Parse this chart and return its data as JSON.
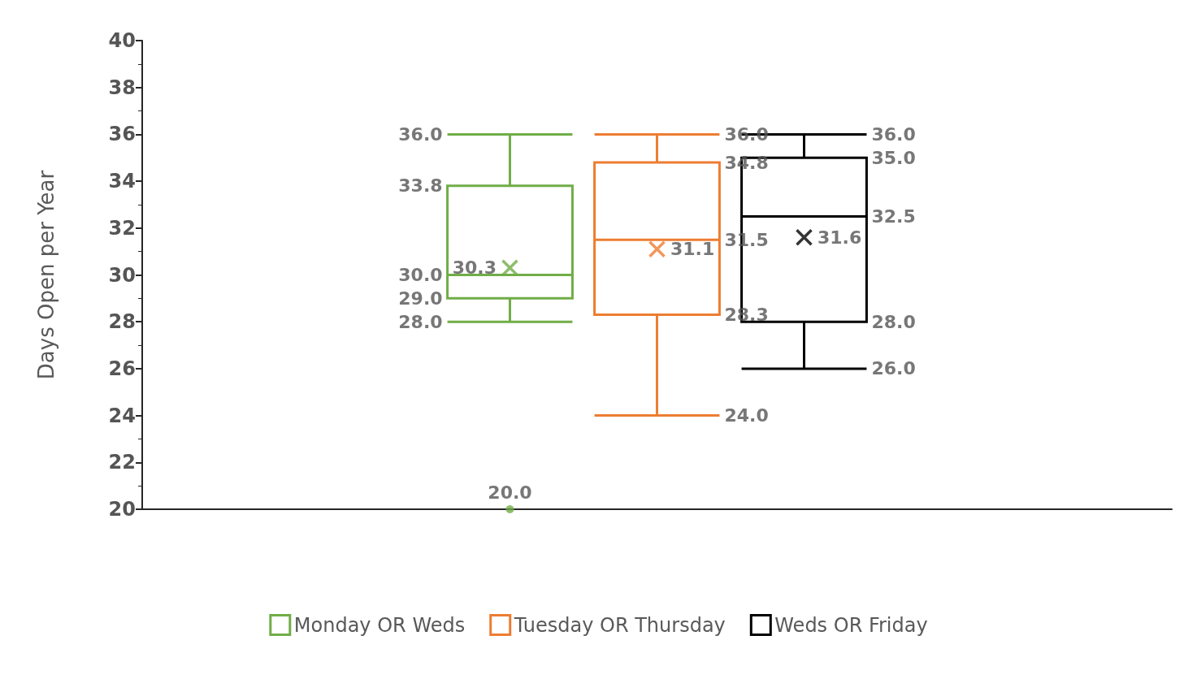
{
  "chart_data": {
    "type": "box",
    "ylabel": "Days Open per Year",
    "categories": [
      null
    ],
    "ylim": [
      20,
      40
    ],
    "yticks": [
      20,
      22,
      24,
      26,
      28,
      30,
      32,
      34,
      36,
      38,
      40
    ],
    "grid": false,
    "legend": "bottom",
    "series": [
      {
        "name": "Monday OR Weds",
        "color": "#70ad47",
        "boxes": [
          {
            "low": 28.0,
            "q1": 29.0,
            "median": 30.0,
            "q3": 33.8,
            "high": 36.0,
            "mean": 30.3,
            "outliers": [
              20.0
            ]
          }
        ]
      },
      {
        "name": "Tuesday OR Thursday",
        "color": "#ed7d31",
        "boxes": [
          {
            "low": 24.0,
            "q1": 28.3,
            "median": 31.5,
            "q3": 34.8,
            "high": 36.0,
            "mean": 31.1
          }
        ]
      },
      {
        "name": "Weds OR Friday",
        "color": "#000000",
        "boxes": [
          {
            "low": 26.0,
            "q1": 28.0,
            "median": 32.5,
            "q3": 35.0,
            "high": 36.0,
            "mean": 31.6
          }
        ]
      }
    ],
    "annotations": [
      "28.0",
      "29.0",
      "30.0",
      "33.8",
      "36.0",
      "30.3",
      "20.0",
      "24.0",
      "28.3",
      "31.5",
      "34.8",
      "36.0",
      "31.1",
      "26.0",
      "28.0",
      "32.5",
      "35.0",
      "36.0",
      "31.6"
    ]
  }
}
